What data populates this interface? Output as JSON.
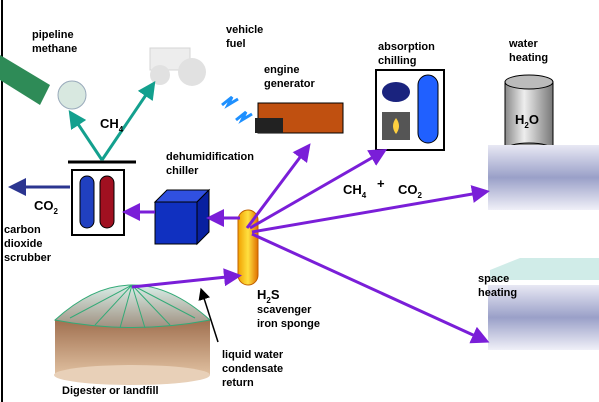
{
  "labels": {
    "pipeline_methane": [
      "pipeline",
      "methane"
    ],
    "vehicle_fuel": [
      "vehicle",
      "fuel"
    ],
    "engine_generator": [
      "engine",
      "generator"
    ],
    "absorption_chilling": [
      "absorption",
      "chilling"
    ],
    "water_heating": [
      "water",
      "heating"
    ],
    "dehumidification_chiller": [
      "dehumidification",
      "chiller"
    ],
    "carbon_dioxide_scrubber": [
      "carbon",
      "dioxide",
      "scrubber"
    ],
    "h2s_scavenger": [
      "scavenger",
      "iron sponge"
    ],
    "space_heating": [
      "space",
      "heating"
    ],
    "condensate_return": [
      "liquid water",
      "condensate",
      "return"
    ],
    "digester": [
      "Digester or landfill"
    ]
  },
  "formulas": {
    "ch4_top": {
      "main": "CH",
      "sub": "4"
    },
    "co2_left": {
      "main": "CO",
      "sub": "2"
    },
    "ch4_mid": {
      "main": "CH",
      "sub": "4"
    },
    "plus": "+",
    "co2_mid": {
      "main": "CO",
      "sub": "2"
    },
    "h2s": {
      "main": "H",
      "sub": "2",
      "tail": "S"
    },
    "h2o": {
      "main": "H",
      "sub": "2",
      "tail": "O"
    }
  }
}
